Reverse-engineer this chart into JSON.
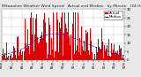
{
  "title_fontsize": 3.2,
  "background_color": "#e8e8e8",
  "plot_bg_color": "#ffffff",
  "bar_color": "#dd0000",
  "line_color": "#0000dd",
  "line_style": "--",
  "line_width": 0.5,
  "bar_width": 1.0,
  "n_minutes": 1440,
  "y_max": 30,
  "y_ticks": [
    0,
    5,
    10,
    15,
    20,
    25,
    30
  ],
  "y_tick_fontsize": 2.8,
  "x_tick_fontsize": 2.0,
  "grid_color": "#bbbbbb",
  "legend_actual_color": "#dd0000",
  "legend_median_color": "#0000dd",
  "legend_fontsize": 2.8
}
